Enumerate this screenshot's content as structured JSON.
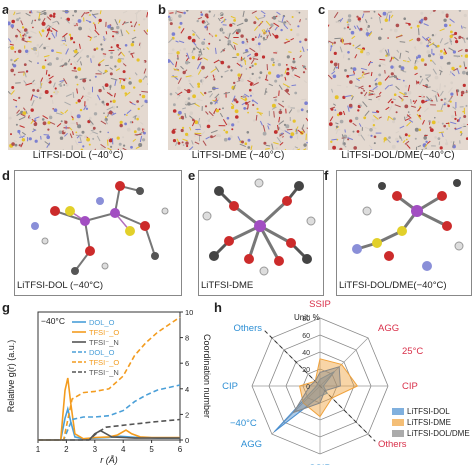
{
  "panels": {
    "a": {
      "label": "a",
      "caption": "LiTFSI-DOL (−40°C)"
    },
    "b": {
      "label": "b",
      "caption": "LiTFSI-DME (−40°C)"
    },
    "c": {
      "label": "c",
      "caption": "LiTFSI-DOL/DME(−40°C)"
    },
    "d": {
      "label": "d",
      "caption": "LiTFSI-DOL (−40°C)"
    },
    "e": {
      "label": "e",
      "caption": "LiTFSI-DME"
    },
    "f": {
      "label": "f",
      "caption": "LiTFSI-DOL/DME(−40°C)"
    },
    "g": {
      "label": "g"
    },
    "h": {
      "label": "h"
    }
  },
  "chart_data": [
    {
      "type": "line",
      "panel": "g",
      "annotation": "−40°C",
      "xlabel": "r (Å)",
      "ylabel_left": "Relative g(r) (a.u.)",
      "ylabel_right": "Coordination number",
      "xlim": [
        1,
        6
      ],
      "y2lim": [
        0,
        10
      ],
      "x_ticks": [
        "1",
        "2",
        "3",
        "4",
        "5",
        "6"
      ],
      "y2_ticks": [
        "0",
        "2",
        "4",
        "6",
        "8",
        "10"
      ],
      "legend": [
        {
          "name": "DOL_O",
          "style": "solid",
          "color": "#4a9fd8"
        },
        {
          "name": "TFSI⁻_O",
          "style": "solid",
          "color": "#f39c1f"
        },
        {
          "name": "TFSI⁻_N",
          "style": "solid",
          "color": "#555555"
        },
        {
          "name": "DOL_O",
          "style": "dashed",
          "color": "#4a9fd8"
        },
        {
          "name": "TFSI⁻_O",
          "style": "dashed",
          "color": "#f39c1f"
        },
        {
          "name": "TFSI⁻_N",
          "style": "dashed",
          "color": "#555555"
        }
      ],
      "series": [
        {
          "name": "DOL_O",
          "style": "solid",
          "color": "#4a9fd8",
          "x": [
            1,
            1.8,
            1.95,
            2.05,
            2.15,
            2.3,
            2.6,
            3,
            3.5,
            3.9,
            4.2,
            4.5,
            4.8,
            5.2,
            6
          ],
          "y": [
            0,
            0,
            0.35,
            0.5,
            0.3,
            0.05,
            0.02,
            0.03,
            0.04,
            0.06,
            0.05,
            0.04,
            0.04,
            0.03,
            0.03
          ]
        },
        {
          "name": "TFSI⁻_O",
          "style": "solid",
          "color": "#f39c1f",
          "x": [
            1,
            1.8,
            1.95,
            2.05,
            2.15,
            2.3,
            2.6,
            3,
            3.5,
            3.8,
            4.1,
            4.3,
            4.6,
            5,
            6
          ],
          "y": [
            0,
            0,
            0.8,
            1.0,
            0.6,
            0.1,
            0.02,
            0.04,
            0.05,
            0.08,
            0.16,
            0.1,
            0.05,
            0.04,
            0.04
          ]
        },
        {
          "name": "TFSI⁻_N",
          "style": "solid",
          "color": "#555555",
          "x": [
            1,
            2.8,
            3,
            3.2,
            3.4,
            3.6,
            4,
            4.4,
            5,
            6
          ],
          "y": [
            0,
            0,
            0.1,
            0.15,
            0.1,
            0.05,
            0.04,
            0.03,
            0.03,
            0.03
          ]
        },
        {
          "name": "DOL_O",
          "style": "dashed",
          "color": "#4a9fd8",
          "x": [
            1,
            1.9,
            2.2,
            2.6,
            3,
            3.5,
            4,
            4.4,
            4.8,
            5.2,
            6
          ],
          "y": [
            0,
            0,
            1.6,
            1.8,
            1.8,
            1.9,
            2.3,
            3.0,
            3.5,
            3.9,
            4.3
          ]
        },
        {
          "name": "TFSI⁻_O",
          "style": "dashed",
          "color": "#f39c1f",
          "x": [
            1,
            1.9,
            2.2,
            2.6,
            3,
            3.5,
            4,
            4.4,
            4.8,
            5.2,
            6
          ],
          "y": [
            0,
            0,
            3.2,
            3.7,
            3.8,
            4.0,
            5.0,
            6.6,
            7.6,
            8.4,
            9.6
          ]
        },
        {
          "name": "TFSI⁻_N",
          "style": "dashed",
          "color": "#555555",
          "x": [
            1,
            2.8,
            3.1,
            3.4,
            3.8,
            4.2,
            4.6,
            5,
            5.5,
            6
          ],
          "y": [
            0,
            0,
            0.6,
            1.0,
            1.1,
            1.2,
            1.3,
            1.4,
            1.5,
            1.6
          ]
        }
      ]
    },
    {
      "type": "radar",
      "panel": "h",
      "unit_label": "Unit: %",
      "axes": [
        {
          "name": "SSIP",
          "color": "#d9304a"
        },
        {
          "name": "AGG",
          "color": "#d9304a"
        },
        {
          "name": "CIP",
          "color": "#d9304a"
        },
        {
          "name": "Others",
          "color": "#d9304a"
        },
        {
          "name": "SSIP",
          "color": "#2e8fd4"
        },
        {
          "name": "AGG",
          "color": "#2e8fd4"
        },
        {
          "name": "CIP",
          "color": "#2e8fd4"
        },
        {
          "name": "Others",
          "color": "#2e8fd4"
        }
      ],
      "group_labels": [
        {
          "text": "25°C",
          "color": "#d9304a"
        },
        {
          "text": "−40°C",
          "color": "#2e8fd4"
        }
      ],
      "r_ticks": [
        "0",
        "20",
        "40",
        "60",
        "80"
      ],
      "rmax": 100,
      "series": [
        {
          "name": "LiTFSI-DOL",
          "color": "#4a8fd0",
          "values": [
            10,
            30,
            5,
            15,
            15,
            95,
            5,
            5
          ]
        },
        {
          "name": "LiTFSI-DME",
          "color": "#f0a23c",
          "values": [
            40,
            45,
            55,
            25,
            45,
            35,
            30,
            10
          ]
        },
        {
          "name": "LiTFSI-DOL/DME",
          "color": "#888888",
          "values": [
            20,
            40,
            30,
            10,
            25,
            55,
            15,
            10
          ]
        }
      ]
    }
  ]
}
